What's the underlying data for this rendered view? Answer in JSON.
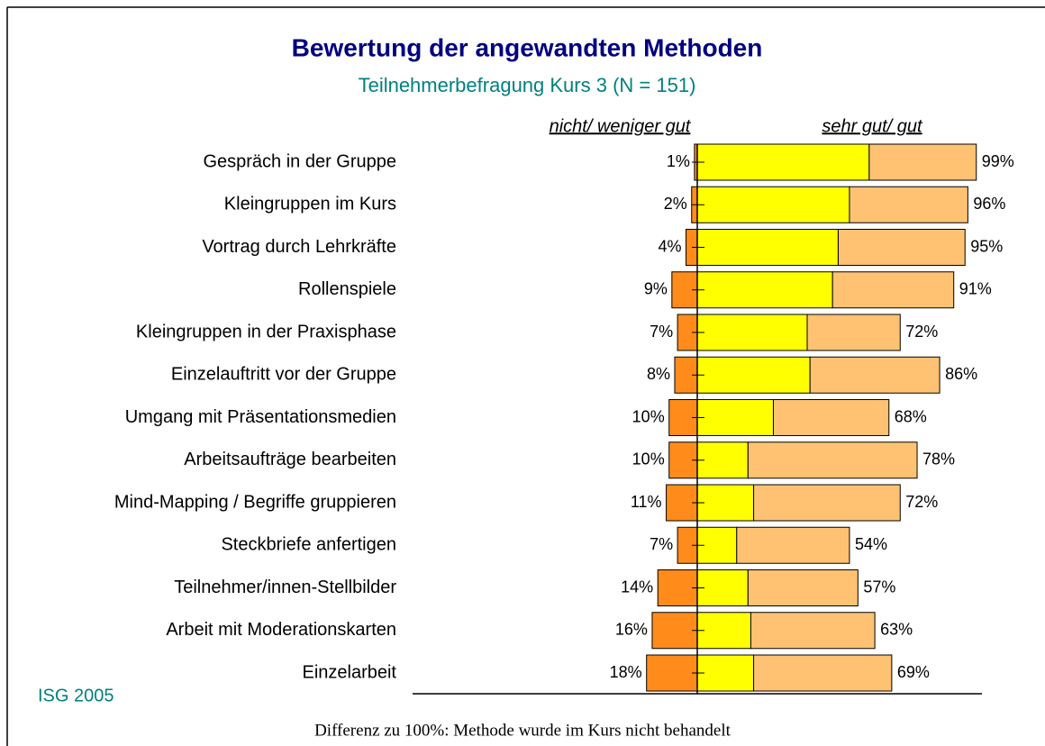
{
  "chart_data": {
    "type": "diverging_bar",
    "title": "Bewertung der angewandten Methoden",
    "subtitle": "Teilnehmerbefragung Kurs 3 (N = 151)",
    "left_header": "nicht/ weniger gut",
    "right_header": "sehr gut/ gut",
    "categories": [
      "Gespräch in der Gruppe",
      "Kleingruppen im Kurs",
      "Vortrag durch Lehrkräfte",
      "Rollenspiele",
      "Kleingruppen in der Praxisphase",
      "Einzelauftritt vor der Gruppe",
      "Umgang mit Präsentationsmedien",
      "Arbeitsaufträge bearbeiten",
      "Mind-Mapping / Begriffe gruppieren",
      "Steckbriefe anfertigen ",
      "Teilnehmer/innen-Stellbilder",
      "Arbeit mit Moderationskarten",
      "Einzelarbeit"
    ],
    "negative": {
      "color": "#ff8c1a",
      "values": [
        1,
        2,
        4,
        9,
        7,
        8,
        10,
        10,
        11,
        7,
        14,
        16,
        18
      ],
      "value_labels": [
        "1%",
        "2%",
        "4%",
        "9%",
        "7%",
        "8%",
        "10%",
        "10%",
        "11%",
        "7%",
        "14%",
        "16%",
        "18%"
      ]
    },
    "series": [
      {
        "color": "#ffff00",
        "values": [
          61,
          54,
          50,
          48,
          39,
          40,
          27,
          18,
          20,
          14,
          18,
          19,
          20
        ]
      },
      {
        "color": "#ffc272",
        "values": [
          38,
          42,
          45,
          43,
          33,
          46,
          41,
          60,
          52,
          40,
          39,
          44,
          49
        ]
      }
    ],
    "totals": [
      99,
      96,
      95,
      91,
      72,
      86,
      68,
      78,
      72,
      54,
      57,
      63,
      69
    ],
    "total_labels": [
      "99%",
      "96%",
      "95%",
      "91%",
      "72%",
      "86%",
      "68%",
      "78%",
      "72%",
      "54%",
      "57%",
      "63%",
      "69%"
    ],
    "xlim": [
      -101,
      101
    ],
    "source": "ISG 2005",
    "footnote": "Differenz zu 100%: Methode wurde im Kurs nicht behandelt"
  }
}
